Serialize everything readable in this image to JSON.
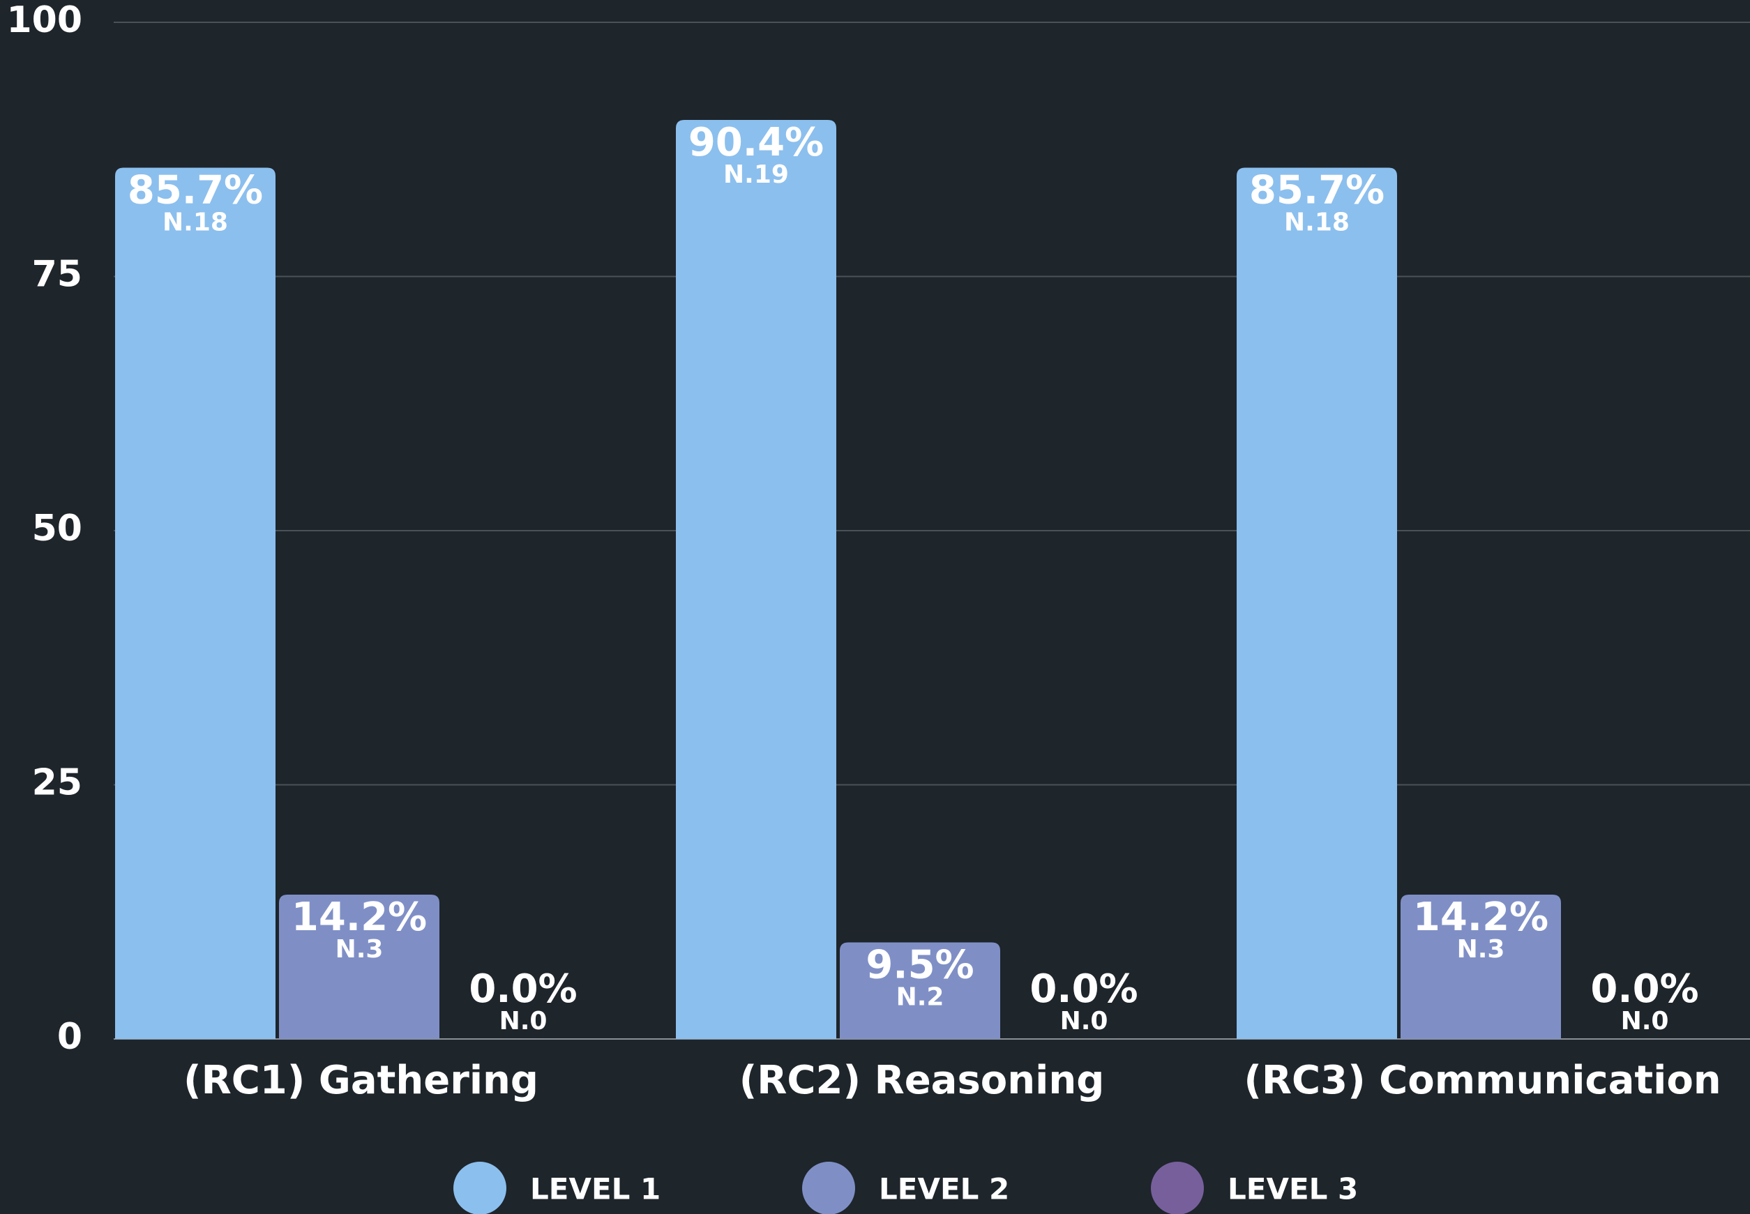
{
  "chart_data": {
    "type": "bar",
    "categories": [
      "(RC1) Gathering",
      "(RC2) Reasoning",
      "(RC3) Communication"
    ],
    "series": [
      {
        "name": "LEVEL 1",
        "color": "#8bbfee",
        "values": [
          85.7,
          90.4,
          85.7
        ],
        "value_labels": [
          "85.7%",
          "90.4%",
          "85.7%"
        ],
        "n_labels": [
          "N.18",
          "N.19",
          "N.18"
        ]
      },
      {
        "name": "LEVEL 2",
        "color": "#7f8fc6",
        "values": [
          14.2,
          9.5,
          14.2
        ],
        "value_labels": [
          "14.2%",
          "9.5%",
          "14.2%"
        ],
        "n_labels": [
          "N.3",
          "N.2",
          "N.3"
        ]
      },
      {
        "name": "LEVEL 3",
        "color": "#775f9c",
        "values": [
          0,
          0,
          0
        ],
        "value_labels": [
          "0.0%",
          "0.0%",
          "0.0%"
        ],
        "n_labels": [
          "N.0",
          "N.0",
          "N.0"
        ]
      }
    ],
    "ylim": [
      0,
      100
    ],
    "yticks": [
      0,
      25,
      50,
      75,
      100
    ],
    "grid": true,
    "legend": "bottom"
  }
}
